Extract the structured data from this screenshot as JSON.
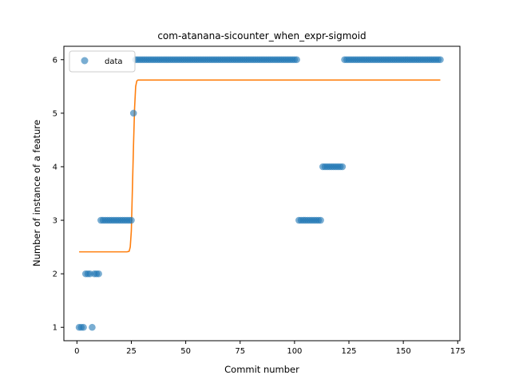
{
  "chart_data": {
    "type": "scatter",
    "title": "com-atanana-sicounter_when_expr-sigmoid",
    "xlabel": "Commit number",
    "ylabel": "Number of instance of a feature",
    "xlim": [
      -6,
      176
    ],
    "ylim": [
      0.75,
      6.25
    ],
    "xticks": [
      0,
      25,
      50,
      75,
      100,
      125,
      150,
      175
    ],
    "yticks": [
      1,
      2,
      3,
      4,
      5,
      6
    ],
    "grid": false,
    "legend": {
      "position": "top-left",
      "entries": [
        "data"
      ]
    },
    "colors": {
      "data": "#1f77b4",
      "fit": "#ff7f0e"
    },
    "series": [
      {
        "name": "data",
        "kind": "scatter",
        "points": [
          [
            1,
            1
          ],
          [
            2,
            1
          ],
          [
            3,
            1
          ],
          [
            7,
            1
          ],
          [
            4,
            2
          ],
          [
            5,
            2
          ],
          [
            6,
            2
          ],
          [
            8,
            2
          ],
          [
            9,
            2
          ],
          [
            10,
            2
          ],
          [
            11,
            3
          ],
          [
            12,
            3
          ],
          [
            13,
            3
          ],
          [
            14,
            3
          ],
          [
            15,
            3
          ],
          [
            16,
            3
          ],
          [
            17,
            3
          ],
          [
            18,
            3
          ],
          [
            19,
            3
          ],
          [
            20,
            3
          ],
          [
            21,
            3
          ],
          [
            22,
            3
          ],
          [
            23,
            3
          ],
          [
            24,
            3
          ],
          [
            25,
            3
          ],
          [
            26,
            5
          ],
          [
            27,
            6
          ],
          [
            28,
            6
          ],
          [
            29,
            6
          ],
          [
            30,
            6
          ],
          [
            31,
            6
          ],
          [
            32,
            6
          ],
          [
            33,
            6
          ],
          [
            34,
            6
          ],
          [
            35,
            6
          ],
          [
            36,
            6
          ],
          [
            37,
            6
          ],
          [
            38,
            6
          ],
          [
            39,
            6
          ],
          [
            40,
            6
          ],
          [
            41,
            6
          ],
          [
            42,
            6
          ],
          [
            43,
            6
          ],
          [
            44,
            6
          ],
          [
            45,
            6
          ],
          [
            46,
            6
          ],
          [
            47,
            6
          ],
          [
            48,
            6
          ],
          [
            49,
            6
          ],
          [
            50,
            6
          ],
          [
            51,
            6
          ],
          [
            52,
            6
          ],
          [
            53,
            6
          ],
          [
            54,
            6
          ],
          [
            55,
            6
          ],
          [
            56,
            6
          ],
          [
            57,
            6
          ],
          [
            58,
            6
          ],
          [
            59,
            6
          ],
          [
            60,
            6
          ],
          [
            61,
            6
          ],
          [
            62,
            6
          ],
          [
            63,
            6
          ],
          [
            64,
            6
          ],
          [
            65,
            6
          ],
          [
            66,
            6
          ],
          [
            67,
            6
          ],
          [
            68,
            6
          ],
          [
            69,
            6
          ],
          [
            70,
            6
          ],
          [
            71,
            6
          ],
          [
            72,
            6
          ],
          [
            73,
            6
          ],
          [
            74,
            6
          ],
          [
            75,
            6
          ],
          [
            76,
            6
          ],
          [
            77,
            6
          ],
          [
            78,
            6
          ],
          [
            79,
            6
          ],
          [
            80,
            6
          ],
          [
            81,
            6
          ],
          [
            82,
            6
          ],
          [
            83,
            6
          ],
          [
            84,
            6
          ],
          [
            85,
            6
          ],
          [
            86,
            6
          ],
          [
            87,
            6
          ],
          [
            88,
            6
          ],
          [
            89,
            6
          ],
          [
            90,
            6
          ],
          [
            91,
            6
          ],
          [
            92,
            6
          ],
          [
            93,
            6
          ],
          [
            94,
            6
          ],
          [
            95,
            6
          ],
          [
            96,
            6
          ],
          [
            97,
            6
          ],
          [
            98,
            6
          ],
          [
            99,
            6
          ],
          [
            100,
            6
          ],
          [
            101,
            6
          ],
          [
            102,
            3
          ],
          [
            103,
            3
          ],
          [
            104,
            3
          ],
          [
            105,
            3
          ],
          [
            106,
            3
          ],
          [
            107,
            3
          ],
          [
            108,
            3
          ],
          [
            109,
            3
          ],
          [
            110,
            3
          ],
          [
            111,
            3
          ],
          [
            112,
            3
          ],
          [
            113,
            4
          ],
          [
            114,
            4
          ],
          [
            115,
            4
          ],
          [
            116,
            4
          ],
          [
            117,
            4
          ],
          [
            118,
            4
          ],
          [
            119,
            4
          ],
          [
            120,
            4
          ],
          [
            121,
            4
          ],
          [
            122,
            4
          ],
          [
            123,
            6
          ],
          [
            124,
            6
          ],
          [
            125,
            6
          ],
          [
            126,
            6
          ],
          [
            127,
            6
          ],
          [
            128,
            6
          ],
          [
            129,
            6
          ],
          [
            130,
            6
          ],
          [
            131,
            6
          ],
          [
            132,
            6
          ],
          [
            133,
            6
          ],
          [
            134,
            6
          ],
          [
            135,
            6
          ],
          [
            136,
            6
          ],
          [
            137,
            6
          ],
          [
            138,
            6
          ],
          [
            139,
            6
          ],
          [
            140,
            6
          ],
          [
            141,
            6
          ],
          [
            142,
            6
          ],
          [
            143,
            6
          ],
          [
            144,
            6
          ],
          [
            145,
            6
          ],
          [
            146,
            6
          ],
          [
            147,
            6
          ],
          [
            148,
            6
          ],
          [
            149,
            6
          ],
          [
            150,
            6
          ],
          [
            151,
            6
          ],
          [
            152,
            6
          ],
          [
            153,
            6
          ],
          [
            154,
            6
          ],
          [
            155,
            6
          ],
          [
            156,
            6
          ],
          [
            157,
            6
          ],
          [
            158,
            6
          ],
          [
            159,
            6
          ],
          [
            160,
            6
          ],
          [
            161,
            6
          ],
          [
            162,
            6
          ],
          [
            163,
            6
          ],
          [
            164,
            6
          ],
          [
            165,
            6
          ],
          [
            166,
            6
          ],
          [
            167,
            6
          ]
        ]
      },
      {
        "kind": "line",
        "x": [
          1,
          23,
          24,
          24.5,
          25,
          25.5,
          26,
          26.5,
          27,
          27.5,
          28,
          167
        ],
        "y": [
          2.41,
          2.41,
          2.42,
          2.5,
          2.8,
          3.6,
          4.4,
          5.1,
          5.5,
          5.6,
          5.62,
          5.62
        ]
      }
    ]
  }
}
